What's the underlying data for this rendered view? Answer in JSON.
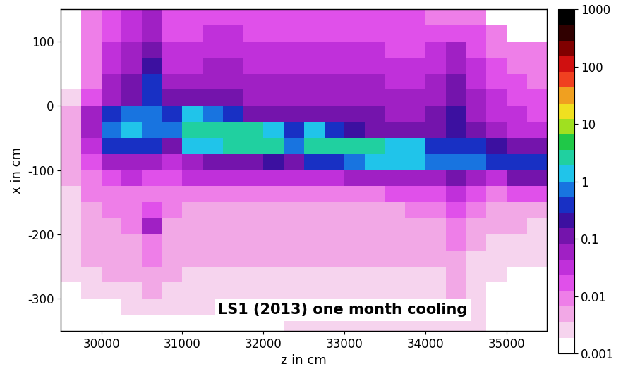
{
  "chart_data": {
    "type": "heatmap",
    "text": "LS1 (2013) one month cooling",
    "x_label": "z in cm",
    "y_label": "x in cm",
    "xlim": [
      29500,
      35500
    ],
    "xticks": [
      30000,
      31000,
      32000,
      33000,
      34000,
      35000
    ],
    "ylim": [
      -350,
      150
    ],
    "yticks": [
      -300,
      -200,
      -100,
      0,
      100
    ],
    "x_edges": [
      29500,
      29750,
      30000,
      30250,
      30500,
      30750,
      31000,
      31250,
      31500,
      31750,
      32000,
      32250,
      32500,
      32750,
      33000,
      33250,
      33500,
      33750,
      34000,
      34250,
      34500,
      34750,
      35000,
      35250,
      35500
    ],
    "y_edges": [
      -350,
      -325,
      -300,
      -275,
      -250,
      -225,
      -200,
      -175,
      -150,
      -125,
      -100,
      -75,
      -50,
      -25,
      0,
      25,
      50,
      75,
      100,
      125,
      150
    ],
    "cells": [
      [
        null,
        null,
        null,
        null,
        null,
        null,
        null,
        null,
        null,
        null,
        null,
        0.002,
        0.002,
        0.002,
        0.002,
        0.002,
        0.002,
        0.002,
        0.002,
        0.002,
        0.002,
        null,
        null,
        null
      ],
      [
        null,
        null,
        null,
        0.002,
        0.003,
        0.002,
        0.002,
        0.002,
        0.002,
        0.002,
        0.002,
        0.002,
        0.002,
        0.002,
        0.002,
        0.002,
        0.002,
        0.002,
        0.002,
        0.003,
        0.002,
        null,
        null,
        null
      ],
      [
        null,
        0.002,
        0.003,
        0.003,
        0.004,
        0.003,
        0.003,
        0.003,
        0.003,
        0.003,
        0.003,
        0.003,
        0.003,
        0.003,
        0.003,
        0.003,
        0.003,
        0.003,
        0.003,
        0.004,
        0.002,
        null,
        null,
        null
      ],
      [
        0.002,
        0.003,
        0.004,
        0.004,
        0.006,
        0.004,
        0.003,
        0.003,
        0.003,
        0.003,
        0.003,
        0.003,
        0.003,
        0.003,
        0.003,
        0.003,
        0.003,
        0.003,
        0.003,
        0.005,
        0.003,
        0.002,
        null,
        null
      ],
      [
        0.002,
        0.004,
        0.004,
        0.005,
        0.008,
        0.004,
        0.004,
        0.004,
        0.004,
        0.004,
        0.004,
        0.004,
        0.004,
        0.004,
        0.004,
        0.004,
        0.004,
        0.004,
        0.004,
        0.006,
        0.003,
        0.002,
        0.002,
        0.002
      ],
      [
        0.002,
        0.004,
        0.005,
        0.006,
        0.01,
        0.005,
        0.004,
        0.004,
        0.004,
        0.004,
        0.004,
        0.004,
        0.004,
        0.004,
        0.004,
        0.004,
        0.004,
        0.004,
        0.005,
        0.008,
        0.004,
        0.003,
        0.003,
        0.002
      ],
      [
        0.002,
        0.005,
        0.006,
        0.008,
        0.05,
        0.006,
        0.005,
        0.005,
        0.005,
        0.005,
        0.005,
        0.005,
        0.005,
        0.005,
        0.005,
        0.005,
        0.005,
        0.005,
        0.006,
        0.01,
        0.005,
        0.004,
        0.004,
        0.003
      ],
      [
        0.002,
        0.006,
        0.008,
        0.01,
        0.02,
        0.008,
        0.006,
        0.006,
        0.006,
        0.006,
        0.006,
        0.006,
        0.006,
        0.006,
        0.006,
        0.006,
        0.006,
        0.008,
        0.008,
        0.02,
        0.008,
        0.006,
        0.006,
        0.005
      ],
      [
        0.003,
        0.008,
        0.01,
        0.01,
        0.01,
        0.01,
        0.01,
        0.01,
        0.01,
        0.01,
        0.01,
        0.01,
        0.01,
        0.01,
        0.01,
        0.01,
        0.015,
        0.015,
        0.015,
        0.03,
        0.015,
        0.01,
        0.02,
        0.02
      ],
      [
        0.004,
        0.01,
        0.02,
        0.03,
        0.02,
        0.02,
        0.03,
        0.03,
        0.03,
        0.03,
        0.03,
        0.03,
        0.04,
        0.04,
        0.05,
        0.06,
        0.08,
        0.06,
        0.05,
        0.1,
        0.05,
        0.04,
        0.1,
        0.15
      ],
      [
        0.004,
        0.02,
        0.05,
        0.08,
        0.05,
        0.03,
        0.08,
        0.1,
        0.1,
        0.15,
        0.2,
        0.1,
        0.4,
        0.5,
        0.8,
        1.0,
        1.5,
        1.0,
        0.6,
        0.8,
        0.6,
        0.3,
        0.5,
        0.4
      ],
      [
        0.004,
        0.03,
        0.3,
        0.4,
        0.3,
        0.1,
        1.0,
        1.5,
        2,
        3,
        3,
        0.8,
        3,
        3,
        2.5,
        2,
        1.5,
        1.0,
        0.3,
        0.4,
        0.3,
        0.2,
        0.15,
        0.1
      ],
      [
        0.005,
        0.05,
        0.8,
        1.0,
        0.8,
        0.6,
        3,
        3,
        2.5,
        2,
        1.5,
        0.5,
        1.0,
        0.4,
        0.2,
        0.15,
        0.1,
        0.1,
        0.12,
        0.2,
        0.1,
        0.06,
        0.04,
        0.03
      ],
      [
        0.005,
        0.05,
        0.5,
        0.8,
        0.6,
        0.4,
        1.5,
        0.8,
        0.3,
        0.15,
        0.12,
        0.1,
        0.1,
        0.1,
        0.1,
        0.1,
        0.08,
        0.07,
        0.1,
        0.2,
        0.08,
        0.04,
        0.03,
        0.02
      ],
      [
        0.003,
        0.02,
        0.08,
        0.15,
        0.4,
        0.1,
        0.1,
        0.1,
        0.1,
        0.08,
        0.08,
        0.07,
        0.08,
        0.08,
        0.08,
        0.07,
        0.06,
        0.05,
        0.06,
        0.15,
        0.05,
        0.03,
        0.02,
        0.015
      ],
      [
        null,
        0.01,
        0.05,
        0.1,
        0.3,
        0.06,
        0.06,
        0.07,
        0.07,
        0.06,
        0.06,
        0.05,
        0.06,
        0.06,
        0.06,
        0.05,
        0.04,
        0.04,
        0.05,
        0.12,
        0.04,
        0.02,
        0.015,
        0.01
      ],
      [
        null,
        0.01,
        0.04,
        0.08,
        0.2,
        0.04,
        0.04,
        0.05,
        0.05,
        0.04,
        0.04,
        0.04,
        0.04,
        0.04,
        0.04,
        0.04,
        0.03,
        0.03,
        0.04,
        0.08,
        0.03,
        0.015,
        0.01,
        0.01
      ],
      [
        null,
        0.01,
        0.03,
        0.06,
        0.12,
        0.03,
        0.03,
        0.04,
        0.04,
        0.03,
        0.03,
        0.03,
        0.03,
        0.03,
        0.03,
        0.03,
        0.02,
        0.02,
        0.03,
        0.05,
        0.02,
        0.01,
        0.01,
        0.008
      ],
      [
        null,
        0.01,
        0.02,
        0.04,
        0.08,
        0.02,
        0.02,
        0.03,
        0.03,
        0.02,
        0.02,
        0.02,
        0.02,
        0.02,
        0.02,
        0.02,
        0.015,
        0.015,
        0.015,
        0.02,
        0.015,
        0.01,
        null,
        null
      ],
      [
        null,
        0.01,
        0.02,
        0.03,
        0.05,
        0.02,
        0.02,
        0.02,
        0.02,
        0.02,
        0.02,
        0.02,
        0.015,
        0.015,
        0.015,
        0.015,
        0.015,
        0.015,
        0.01,
        0.01,
        0.01,
        null,
        null,
        null
      ]
    ],
    "colorbar_range": [
      0.001,
      1000
    ],
    "colorbar_ticks": [
      0.001,
      0.01,
      0.1,
      1,
      10,
      100,
      1000
    ]
  }
}
